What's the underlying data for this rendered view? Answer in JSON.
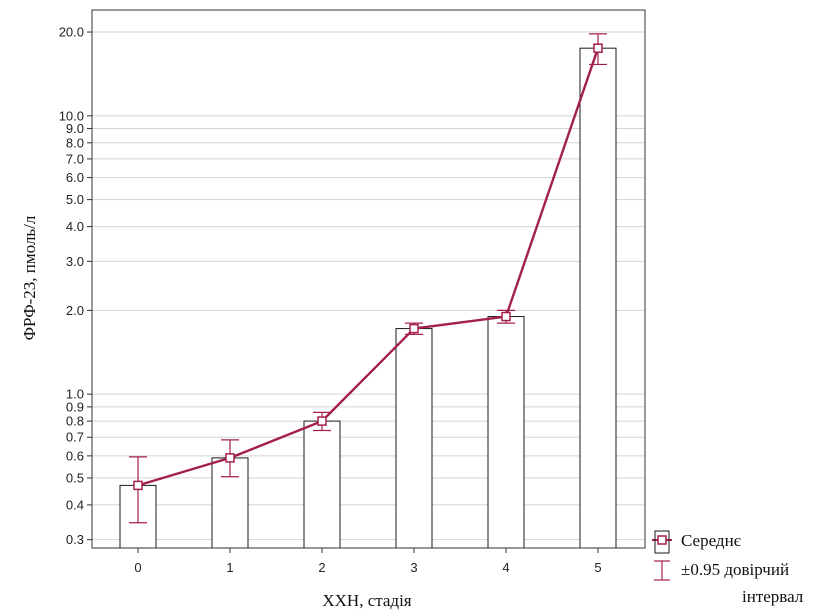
{
  "chart_data": {
    "type": "bar",
    "title": "",
    "xlabel": "ХХН, стадія",
    "ylabel": "ФРФ-23, пмоль/л",
    "y_scale": "log",
    "ylim": [
      0.28,
      24
    ],
    "grid": true,
    "categories": [
      "0",
      "1",
      "2",
      "3",
      "4",
      "5"
    ],
    "series": [
      {
        "name": "Середнє",
        "values": [
          0.47,
          0.59,
          0.8,
          1.72,
          1.9,
          17.5
        ],
        "ci_lower": [
          0.345,
          0.505,
          0.74,
          1.64,
          1.8,
          15.3
        ],
        "ci_upper": [
          0.595,
          0.685,
          0.86,
          1.8,
          2.0,
          19.7
        ]
      }
    ],
    "y_ticks": [
      {
        "value": 0.3,
        "label": "0.3"
      },
      {
        "value": 0.4,
        "label": "0.4"
      },
      {
        "value": 0.5,
        "label": "0.5"
      },
      {
        "value": 0.6,
        "label": "0.6"
      },
      {
        "value": 0.7,
        "label": "0.7"
      },
      {
        "value": 0.8,
        "label": "0.8"
      },
      {
        "value": 0.9,
        "label": "0.9"
      },
      {
        "value": 1.0,
        "label": "1.0"
      },
      {
        "value": 2.0,
        "label": "2.0"
      },
      {
        "value": 3.0,
        "label": "3.0"
      },
      {
        "value": 4.0,
        "label": "4.0"
      },
      {
        "value": 5.0,
        "label": "5.0"
      },
      {
        "value": 6.0,
        "label": "6.0"
      },
      {
        "value": 7.0,
        "label": "7.0"
      },
      {
        "value": 8.0,
        "label": "8.0"
      },
      {
        "value": 9.0,
        "label": "9.0"
      },
      {
        "value": 10.0,
        "label": "10.0"
      },
      {
        "value": 20.0,
        "label": "20.0"
      }
    ],
    "legend": {
      "placement": "bottom-right",
      "mean_label": "Середнє",
      "ci_label_line1": "±0.95 довірчий",
      "ci_label_line2": "інтервал"
    },
    "colors": {
      "series": "#a3204a",
      "bar_stroke": "#1a1a1a",
      "bar_fill": "#ffffff",
      "grid": "#d4d4d4",
      "frame": "#333333"
    }
  }
}
